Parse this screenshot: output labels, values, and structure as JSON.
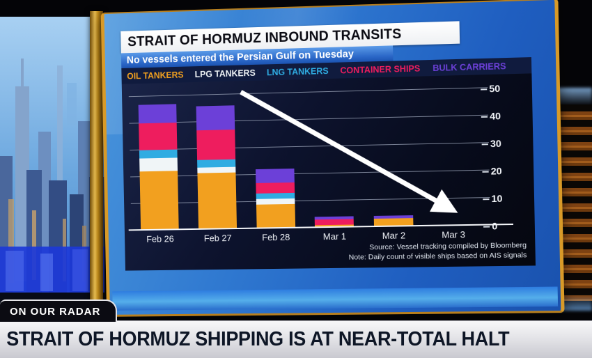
{
  "graphic": {
    "title": "STRAIT OF HORMUZ INBOUND TRANSITS",
    "subtitle": "No vessels entered the Persian Gulf on Tuesday",
    "source_line": "Source: Vessel tracking compiled by Bloomberg",
    "note_line": "Note: Daily count of visible ships based on AIS signals"
  },
  "chart_data": {
    "type": "bar",
    "stacked": true,
    "title": "STRAIT OF HORMUZ INBOUND TRANSITS",
    "subtitle": "No vessels entered the Persian Gulf on Tuesday",
    "categories": [
      "Feb 26",
      "Feb 27",
      "Feb 28",
      "Mar 1",
      "Mar 2",
      "Mar 3"
    ],
    "series": [
      {
        "name": "OIL TANKERS",
        "color": "#f2a01f",
        "values": [
          22,
          21,
          9,
          1,
          3,
          0
        ]
      },
      {
        "name": "LPG TANKERS",
        "color": "#f0f5f7",
        "values": [
          5,
          2,
          2,
          0,
          0,
          0
        ]
      },
      {
        "name": "LNG TANKERS",
        "color": "#2face2",
        "values": [
          3,
          3,
          2,
          0,
          0,
          0
        ]
      },
      {
        "name": "CONTAINER SHIPS",
        "color": "#ee1d5e",
        "values": [
          10,
          11,
          4,
          2,
          0,
          0
        ]
      },
      {
        "name": "BULK CARRIERS",
        "color": "#6c40d8",
        "values": [
          7,
          9,
          5,
          1,
          1,
          0
        ]
      }
    ],
    "totals": [
      47,
      46,
      22,
      4,
      4,
      0
    ],
    "ylim": [
      0,
      50
    ],
    "yticks": [
      0,
      10,
      20,
      30,
      40,
      50
    ],
    "grid": true,
    "legend_position": "top",
    "annotations": [
      "white downward arrow from upper area to lower right ending at Mar 3 zero level"
    ]
  },
  "lower_third": {
    "kicker": "ON OUR RADAR",
    "headline": "STRAIT OF HORMUZ SHIPPING IS AT NEAR-TOTAL HALT"
  }
}
